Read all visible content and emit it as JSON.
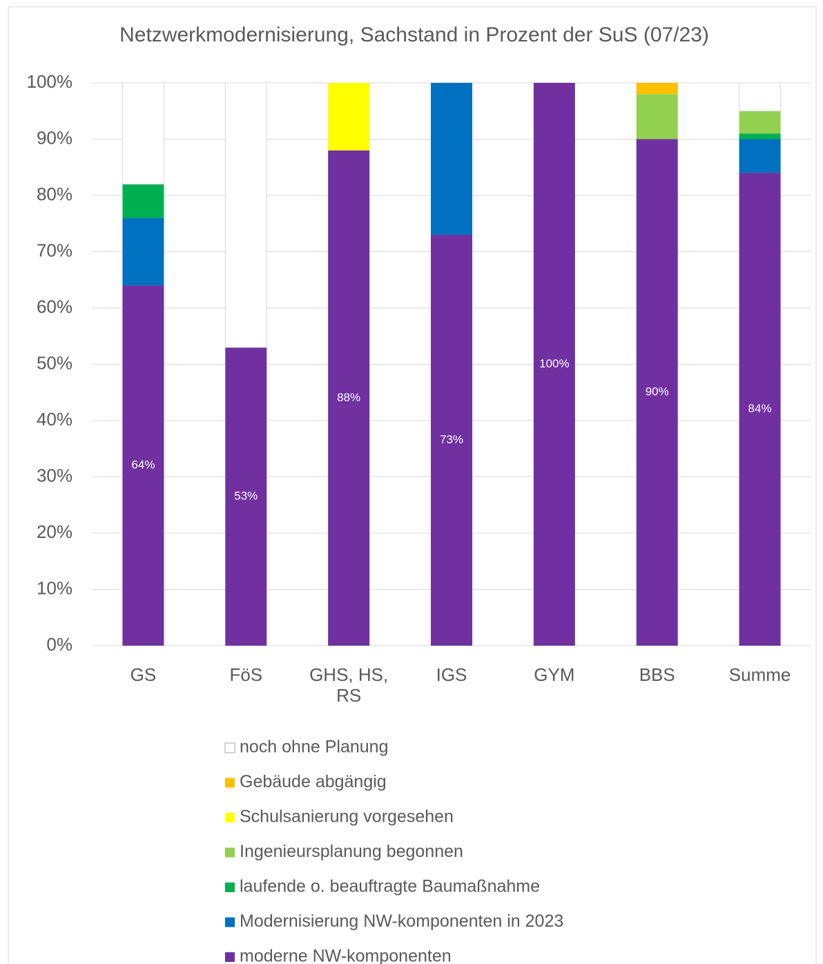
{
  "chart_data": {
    "type": "stacked_bar",
    "title": "Netzwerkmodernisierung, Sachstand in Prozent der SuS (07/23)",
    "categories": [
      "GS",
      "FöS",
      "GHS, HS, RS",
      "IGS",
      "GYM",
      "BBS",
      "Summe"
    ],
    "series": [
      {
        "name": "moderne NW-komponenten",
        "color": "#7030a0",
        "values": [
          64,
          53,
          88,
          73,
          100,
          90,
          84
        ],
        "value_labels": [
          "64%",
          "53%",
          "88%",
          "73%",
          "100%",
          "90%",
          "84%"
        ]
      },
      {
        "name": "Modernisierung NW-komponenten in 2023",
        "color": "#0070c0",
        "values": [
          12,
          0,
          0,
          27,
          0,
          0,
          6
        ]
      },
      {
        "name": "laufende o. beauftragte Baumaßnahme",
        "color": "#00b050",
        "values": [
          6,
          0,
          0,
          0,
          0,
          0,
          1
        ]
      },
      {
        "name": "Ingenieursplanung begonnen",
        "color": "#92d050",
        "values": [
          0,
          0,
          0,
          0,
          0,
          8,
          4
        ]
      },
      {
        "name": "Schulsanierung vorgesehen",
        "color": "#ffff00",
        "values": [
          0,
          0,
          12,
          0,
          0,
          0,
          0
        ]
      },
      {
        "name": "Gebäude abgängig",
        "color": "#ffc000",
        "values": [
          0,
          0,
          0,
          0,
          0,
          2,
          0
        ]
      },
      {
        "name": "noch ohne Planung",
        "color": "#ffffff",
        "values": [
          18,
          47,
          0,
          0,
          0,
          0,
          5
        ]
      }
    ],
    "ylim": [
      0,
      100
    ],
    "yticks": [
      {
        "value": 0,
        "label": "0%"
      },
      {
        "value": 10,
        "label": "10%"
      },
      {
        "value": 20,
        "label": "20%"
      },
      {
        "value": 30,
        "label": "30%"
      },
      {
        "value": 40,
        "label": "40%"
      },
      {
        "value": 50,
        "label": "50%"
      },
      {
        "value": 60,
        "label": "60%"
      },
      {
        "value": 70,
        "label": "70%"
      },
      {
        "value": 80,
        "label": "80%"
      },
      {
        "value": 90,
        "label": "90%"
      },
      {
        "value": 100,
        "label": "100%"
      }
    ],
    "grid": true,
    "legend": "bottom"
  }
}
